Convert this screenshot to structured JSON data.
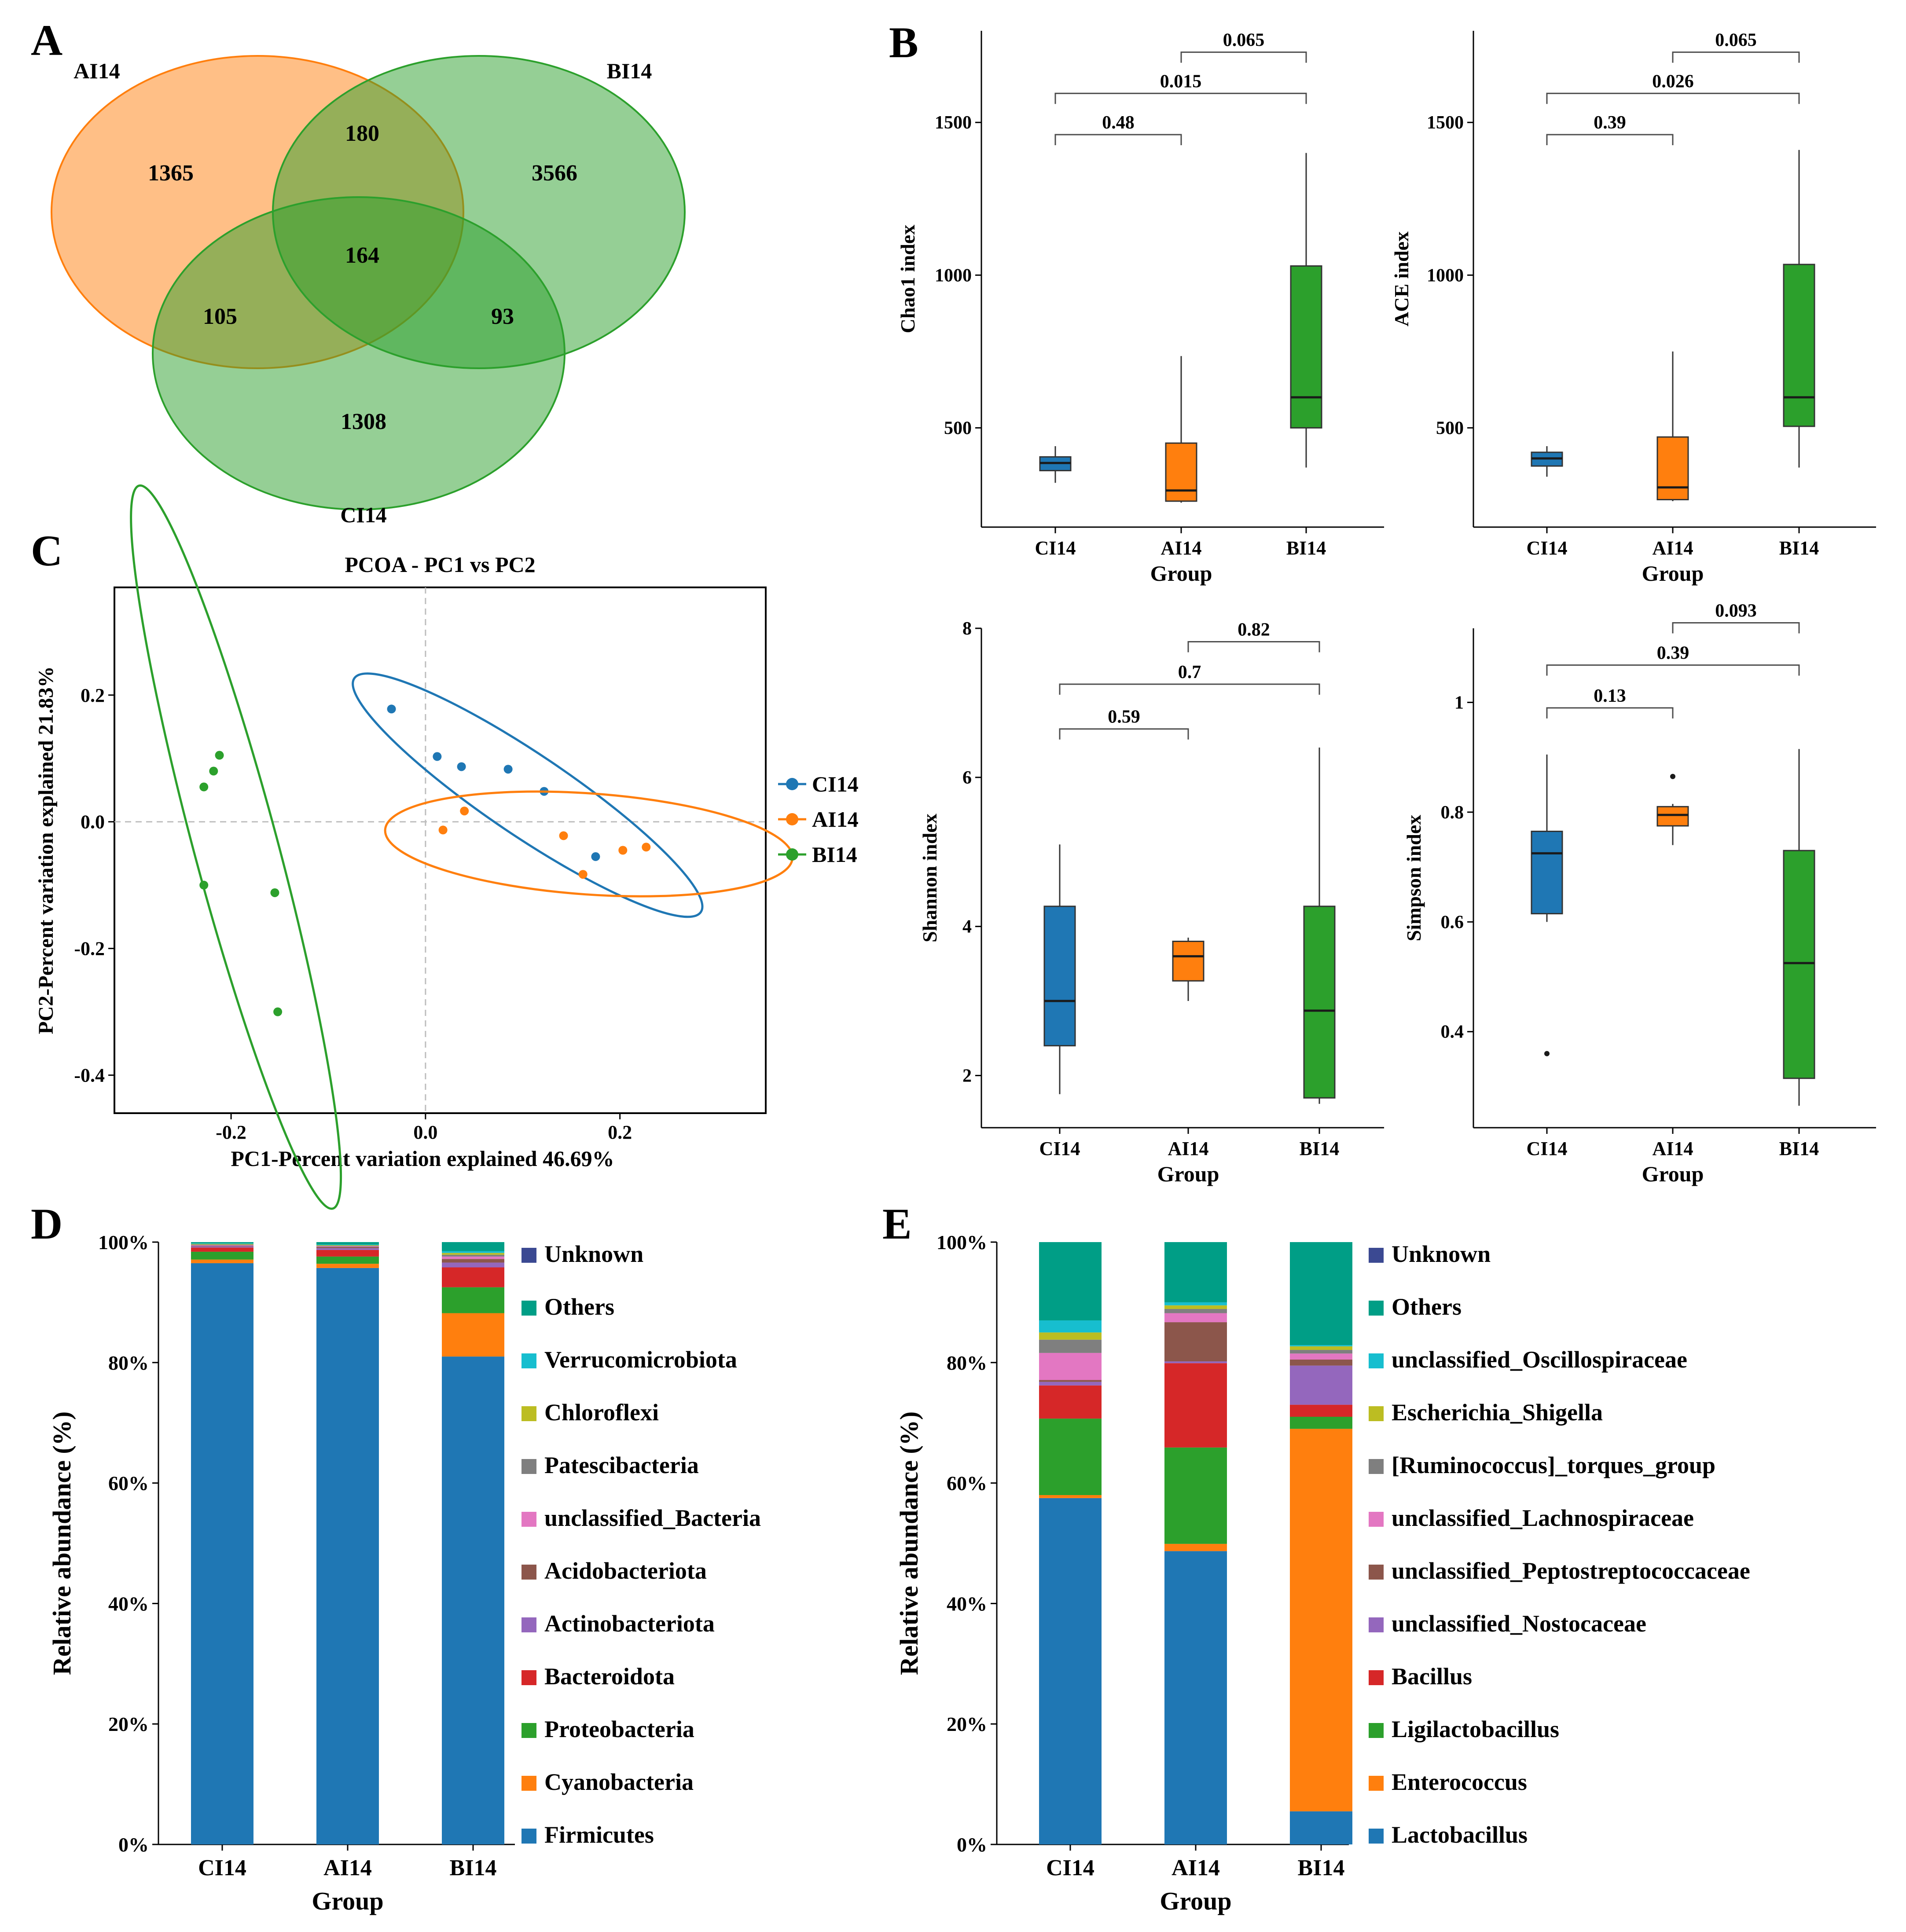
{
  "panels": {
    "A": "A",
    "B": "B",
    "C": "C",
    "D": "D",
    "E": "E"
  },
  "colors": {
    "CI14": "#1f77b4",
    "AI14": "#ff7f0e",
    "BI14": "#2ca02c"
  },
  "chart_data": [
    {
      "id": "venn",
      "type": "venn",
      "sets": [
        "AI14",
        "BI14",
        "CI14"
      ],
      "counts": {
        "AI14_only": 1365,
        "BI14_only": 3566,
        "CI14_only": 1308,
        "AI14_BI14": 180,
        "AI14_CI14": 105,
        "BI14_CI14": 93,
        "all": 164
      }
    },
    {
      "id": "chao1",
      "type": "boxplot",
      "ylabel": "Chao1 index",
      "xlabel": "Group",
      "categories": [
        "CI14",
        "AI14",
        "BI14"
      ],
      "ylim": [
        175,
        1800
      ],
      "yticks": [
        500,
        1000,
        1500
      ],
      "boxes": [
        {
          "group": "CI14",
          "whislo": 320,
          "q1": 360,
          "med": 385,
          "q3": 405,
          "whishi": 440
        },
        {
          "group": "AI14",
          "whislo": 255,
          "q1": 260,
          "med": 295,
          "q3": 450,
          "whishi": 735
        },
        {
          "group": "BI14",
          "whislo": 370,
          "q1": 500,
          "med": 600,
          "q3": 1030,
          "whishi": 1400
        }
      ],
      "outliers": [],
      "comparisons": [
        {
          "from": "CI14",
          "to": "AI14",
          "p": "0.48",
          "level": 1460
        },
        {
          "from": "CI14",
          "to": "BI14",
          "p": "0.015",
          "level": 1595
        },
        {
          "from": "AI14",
          "to": "BI14",
          "p": "0.065",
          "level": 1730
        }
      ]
    },
    {
      "id": "ace",
      "type": "boxplot",
      "ylabel": "ACE index",
      "xlabel": "Group",
      "categories": [
        "CI14",
        "AI14",
        "BI14"
      ],
      "ylim": [
        175,
        1800
      ],
      "yticks": [
        500,
        1000,
        1500
      ],
      "boxes": [
        {
          "group": "CI14",
          "whislo": 340,
          "q1": 375,
          "med": 400,
          "q3": 420,
          "whishi": 440
        },
        {
          "group": "AI14",
          "whislo": 260,
          "q1": 265,
          "med": 305,
          "q3": 470,
          "whishi": 750
        },
        {
          "group": "BI14",
          "whislo": 370,
          "q1": 505,
          "med": 600,
          "q3": 1035,
          "whishi": 1410
        }
      ],
      "outliers": [],
      "comparisons": [
        {
          "from": "CI14",
          "to": "AI14",
          "p": "0.39",
          "level": 1460
        },
        {
          "from": "CI14",
          "to": "BI14",
          "p": "0.026",
          "level": 1595
        },
        {
          "from": "AI14",
          "to": "BI14",
          "p": "0.065",
          "level": 1730
        }
      ]
    },
    {
      "id": "shannon",
      "type": "boxplot",
      "ylabel": "Shannon index",
      "xlabel": "Group",
      "categories": [
        "CI14",
        "AI14",
        "BI14"
      ],
      "ylim": [
        1.3,
        8
      ],
      "yticks": [
        2,
        4,
        6,
        8
      ],
      "boxes": [
        {
          "group": "CI14",
          "whislo": 1.75,
          "q1": 2.4,
          "med": 3.0,
          "q3": 4.27,
          "whishi": 5.1
        },
        {
          "group": "AI14",
          "whislo": 3.0,
          "q1": 3.27,
          "med": 3.6,
          "q3": 3.8,
          "whishi": 3.85
        },
        {
          "group": "BI14",
          "whislo": 1.62,
          "q1": 1.7,
          "med": 2.87,
          "q3": 4.27,
          "whishi": 6.4
        }
      ],
      "outliers": [],
      "comparisons": [
        {
          "from": "CI14",
          "to": "AI14",
          "p": "0.59",
          "level": 6.65
        },
        {
          "from": "CI14",
          "to": "BI14",
          "p": "0.7",
          "level": 7.25
        },
        {
          "from": "AI14",
          "to": "BI14",
          "p": "0.82",
          "level": 7.82
        }
      ]
    },
    {
      "id": "simpson",
      "type": "boxplot",
      "ylabel": "Simpson index",
      "xlabel": "Group",
      "categories": [
        "CI14",
        "AI14",
        "BI14"
      ],
      "ylim": [
        0.225,
        1.135
      ],
      "yticks": [
        0.4,
        0.6,
        0.8,
        1.0
      ],
      "boxes": [
        {
          "group": "CI14",
          "whislo": 0.6,
          "q1": 0.615,
          "med": 0.725,
          "q3": 0.765,
          "whishi": 0.905
        },
        {
          "group": "AI14",
          "whislo": 0.74,
          "q1": 0.775,
          "med": 0.795,
          "q3": 0.81,
          "whishi": 0.815
        },
        {
          "group": "BI14",
          "whislo": 0.265,
          "q1": 0.315,
          "med": 0.525,
          "q3": 0.73,
          "whishi": 0.915
        }
      ],
      "outliers": [
        {
          "group": "CI14",
          "value": 0.36
        },
        {
          "group": "AI14",
          "value": 0.865
        }
      ],
      "comparisons": [
        {
          "from": "CI14",
          "to": "AI14",
          "p": "0.13",
          "level": 0.99
        },
        {
          "from": "CI14",
          "to": "BI14",
          "p": "0.39",
          "level": 1.068
        },
        {
          "from": "AI14",
          "to": "BI14",
          "p": "0.093",
          "level": 1.145
        }
      ]
    },
    {
      "id": "pcoa",
      "type": "scatter",
      "title": "PCOA - PC1 vs PC2",
      "xlabel": "PC1-Percent variation explained 46.69%",
      "ylabel": "PC2-Percent variation explained 21.83%",
      "xlim": [
        -0.32,
        0.35
      ],
      "ylim": [
        -0.46,
        0.37
      ],
      "xticks": [
        -0.2,
        0.0,
        0.2
      ],
      "yticks": [
        -0.4,
        -0.2,
        0.0,
        0.2
      ],
      "legend": [
        "CI14",
        "AI14",
        "BI14"
      ],
      "series": [
        {
          "name": "CI14",
          "points": [
            [
              -0.035,
              0.178
            ],
            [
              0.012,
              0.103
            ],
            [
              0.037,
              0.087
            ],
            [
              0.085,
              0.083
            ],
            [
              0.122,
              0.048
            ],
            [
              0.175,
              -0.055
            ]
          ],
          "ellipse": {
            "cx": 0.105,
            "cy": 0.042,
            "rx": 0.215,
            "ry": 0.042,
            "angle_deg": 34
          }
        },
        {
          "name": "AI14",
          "points": [
            [
              0.018,
              -0.013
            ],
            [
              0.04,
              0.017
            ],
            [
              0.142,
              -0.022
            ],
            [
              0.162,
              -0.083
            ],
            [
              0.203,
              -0.045
            ],
            [
              0.227,
              -0.04
            ]
          ],
          "ellipse": {
            "cx": 0.168,
            "cy": -0.035,
            "rx": 0.21,
            "ry": 0.052,
            "angle_deg": 4
          }
        },
        {
          "name": "BI14",
          "points": [
            [
              -0.228,
              0.055
            ],
            [
              -0.218,
              0.08
            ],
            [
              -0.212,
              0.105
            ],
            [
              -0.228,
              -0.1
            ],
            [
              -0.155,
              -0.112
            ],
            [
              -0.152,
              -0.3
            ]
          ],
          "ellipse": {
            "cx": -0.195,
            "cy": -0.04,
            "rx": 0.385,
            "ry": 0.043,
            "angle_deg": 75
          }
        }
      ]
    },
    {
      "id": "phylum",
      "type": "stacked_bar",
      "xlabel": "Group",
      "ylabel": "Relative abundance (%)",
      "categories": [
        "CI14",
        "AI14",
        "BI14"
      ],
      "ylim": [
        0,
        100
      ],
      "yticks": [
        "0%",
        "20%",
        "40%",
        "60%",
        "80%",
        "100%"
      ],
      "series": [
        {
          "name": "Firmicutes",
          "color": "#1f77b4",
          "values": [
            96.5,
            95.7,
            81.0
          ]
        },
        {
          "name": "Cyanobacteria",
          "color": "#ff7f0e",
          "values": [
            0.6,
            0.7,
            7.2
          ]
        },
        {
          "name": "Proteobacteria",
          "color": "#2ca02c",
          "values": [
            1.3,
            1.2,
            4.3
          ]
        },
        {
          "name": "Bacteroidota",
          "color": "#d62728",
          "values": [
            0.7,
            1.1,
            3.3
          ]
        },
        {
          "name": "Actinobacteriota",
          "color": "#9467bd",
          "values": [
            0.2,
            0.3,
            0.8
          ]
        },
        {
          "name": "Acidobacteriota",
          "color": "#8c564b",
          "values": [
            0.1,
            0.2,
            0.6
          ]
        },
        {
          "name": "unclassified_Bacteria",
          "color": "#e377c2",
          "values": [
            0.1,
            0.1,
            0.4
          ]
        },
        {
          "name": "Patescibacteria",
          "color": "#7f7f7f",
          "values": [
            0.1,
            0.1,
            0.3
          ]
        },
        {
          "name": "Chloroflexi",
          "color": "#bcbd22",
          "values": [
            0.1,
            0.1,
            0.3
          ]
        },
        {
          "name": "Verrucomicrobiota",
          "color": "#17becf",
          "values": [
            0.1,
            0.1,
            0.3
          ]
        },
        {
          "name": "Others",
          "color": "#009e86",
          "values": [
            0.2,
            0.4,
            1.5
          ]
        },
        {
          "name": "Unknown",
          "color": "#3b4992",
          "values": [
            0.0,
            0.0,
            0.0
          ]
        }
      ]
    },
    {
      "id": "genus",
      "type": "stacked_bar",
      "xlabel": "Group",
      "ylabel": "Relative abundance (%)",
      "categories": [
        "CI14",
        "AI14",
        "BI14"
      ],
      "ylim": [
        0,
        100
      ],
      "yticks": [
        "0%",
        "20%",
        "40%",
        "60%",
        "80%",
        "100%"
      ],
      "series": [
        {
          "name": "Lactobacillus",
          "color": "#1f77b4",
          "values": [
            57.5,
            48.7,
            5.5
          ]
        },
        {
          "name": "Enterococcus",
          "color": "#ff7f0e",
          "values": [
            0.5,
            1.2,
            63.5
          ]
        },
        {
          "name": "Ligilactobacillus",
          "color": "#2ca02c",
          "values": [
            12.7,
            16.0,
            2.0
          ]
        },
        {
          "name": "Bacillus",
          "color": "#d62728",
          "values": [
            5.5,
            14.0,
            2.0
          ]
        },
        {
          "name": "unclassified_Nostocaceae",
          "color": "#9467bd",
          "values": [
            0.6,
            0.3,
            6.5
          ]
        },
        {
          "name": "unclassified_Peptostreptococcaceae",
          "color": "#8c564b",
          "values": [
            0.3,
            6.5,
            1.0
          ]
        },
        {
          "name": "unclassified_Lachnospiraceae",
          "color": "#e377c2",
          "values": [
            4.5,
            1.5,
            1.0
          ]
        },
        {
          "name": "[Ruminococcus]_torques_group",
          "color": "#7f7f7f",
          "values": [
            2.2,
            0.7,
            0.6
          ]
        },
        {
          "name": "Escherichia_Shigella",
          "color": "#bcbd22",
          "values": [
            1.2,
            0.6,
            0.6
          ]
        },
        {
          "name": "unclassified_Oscillospiraceae",
          "color": "#17becf",
          "values": [
            2.0,
            0.5,
            0.2
          ]
        },
        {
          "name": "Others",
          "color": "#009e86",
          "values": [
            13.0,
            10.0,
            17.1
          ]
        },
        {
          "name": "Unknown",
          "color": "#3b4992",
          "values": [
            0.0,
            0.0,
            0.0
          ]
        }
      ]
    }
  ]
}
